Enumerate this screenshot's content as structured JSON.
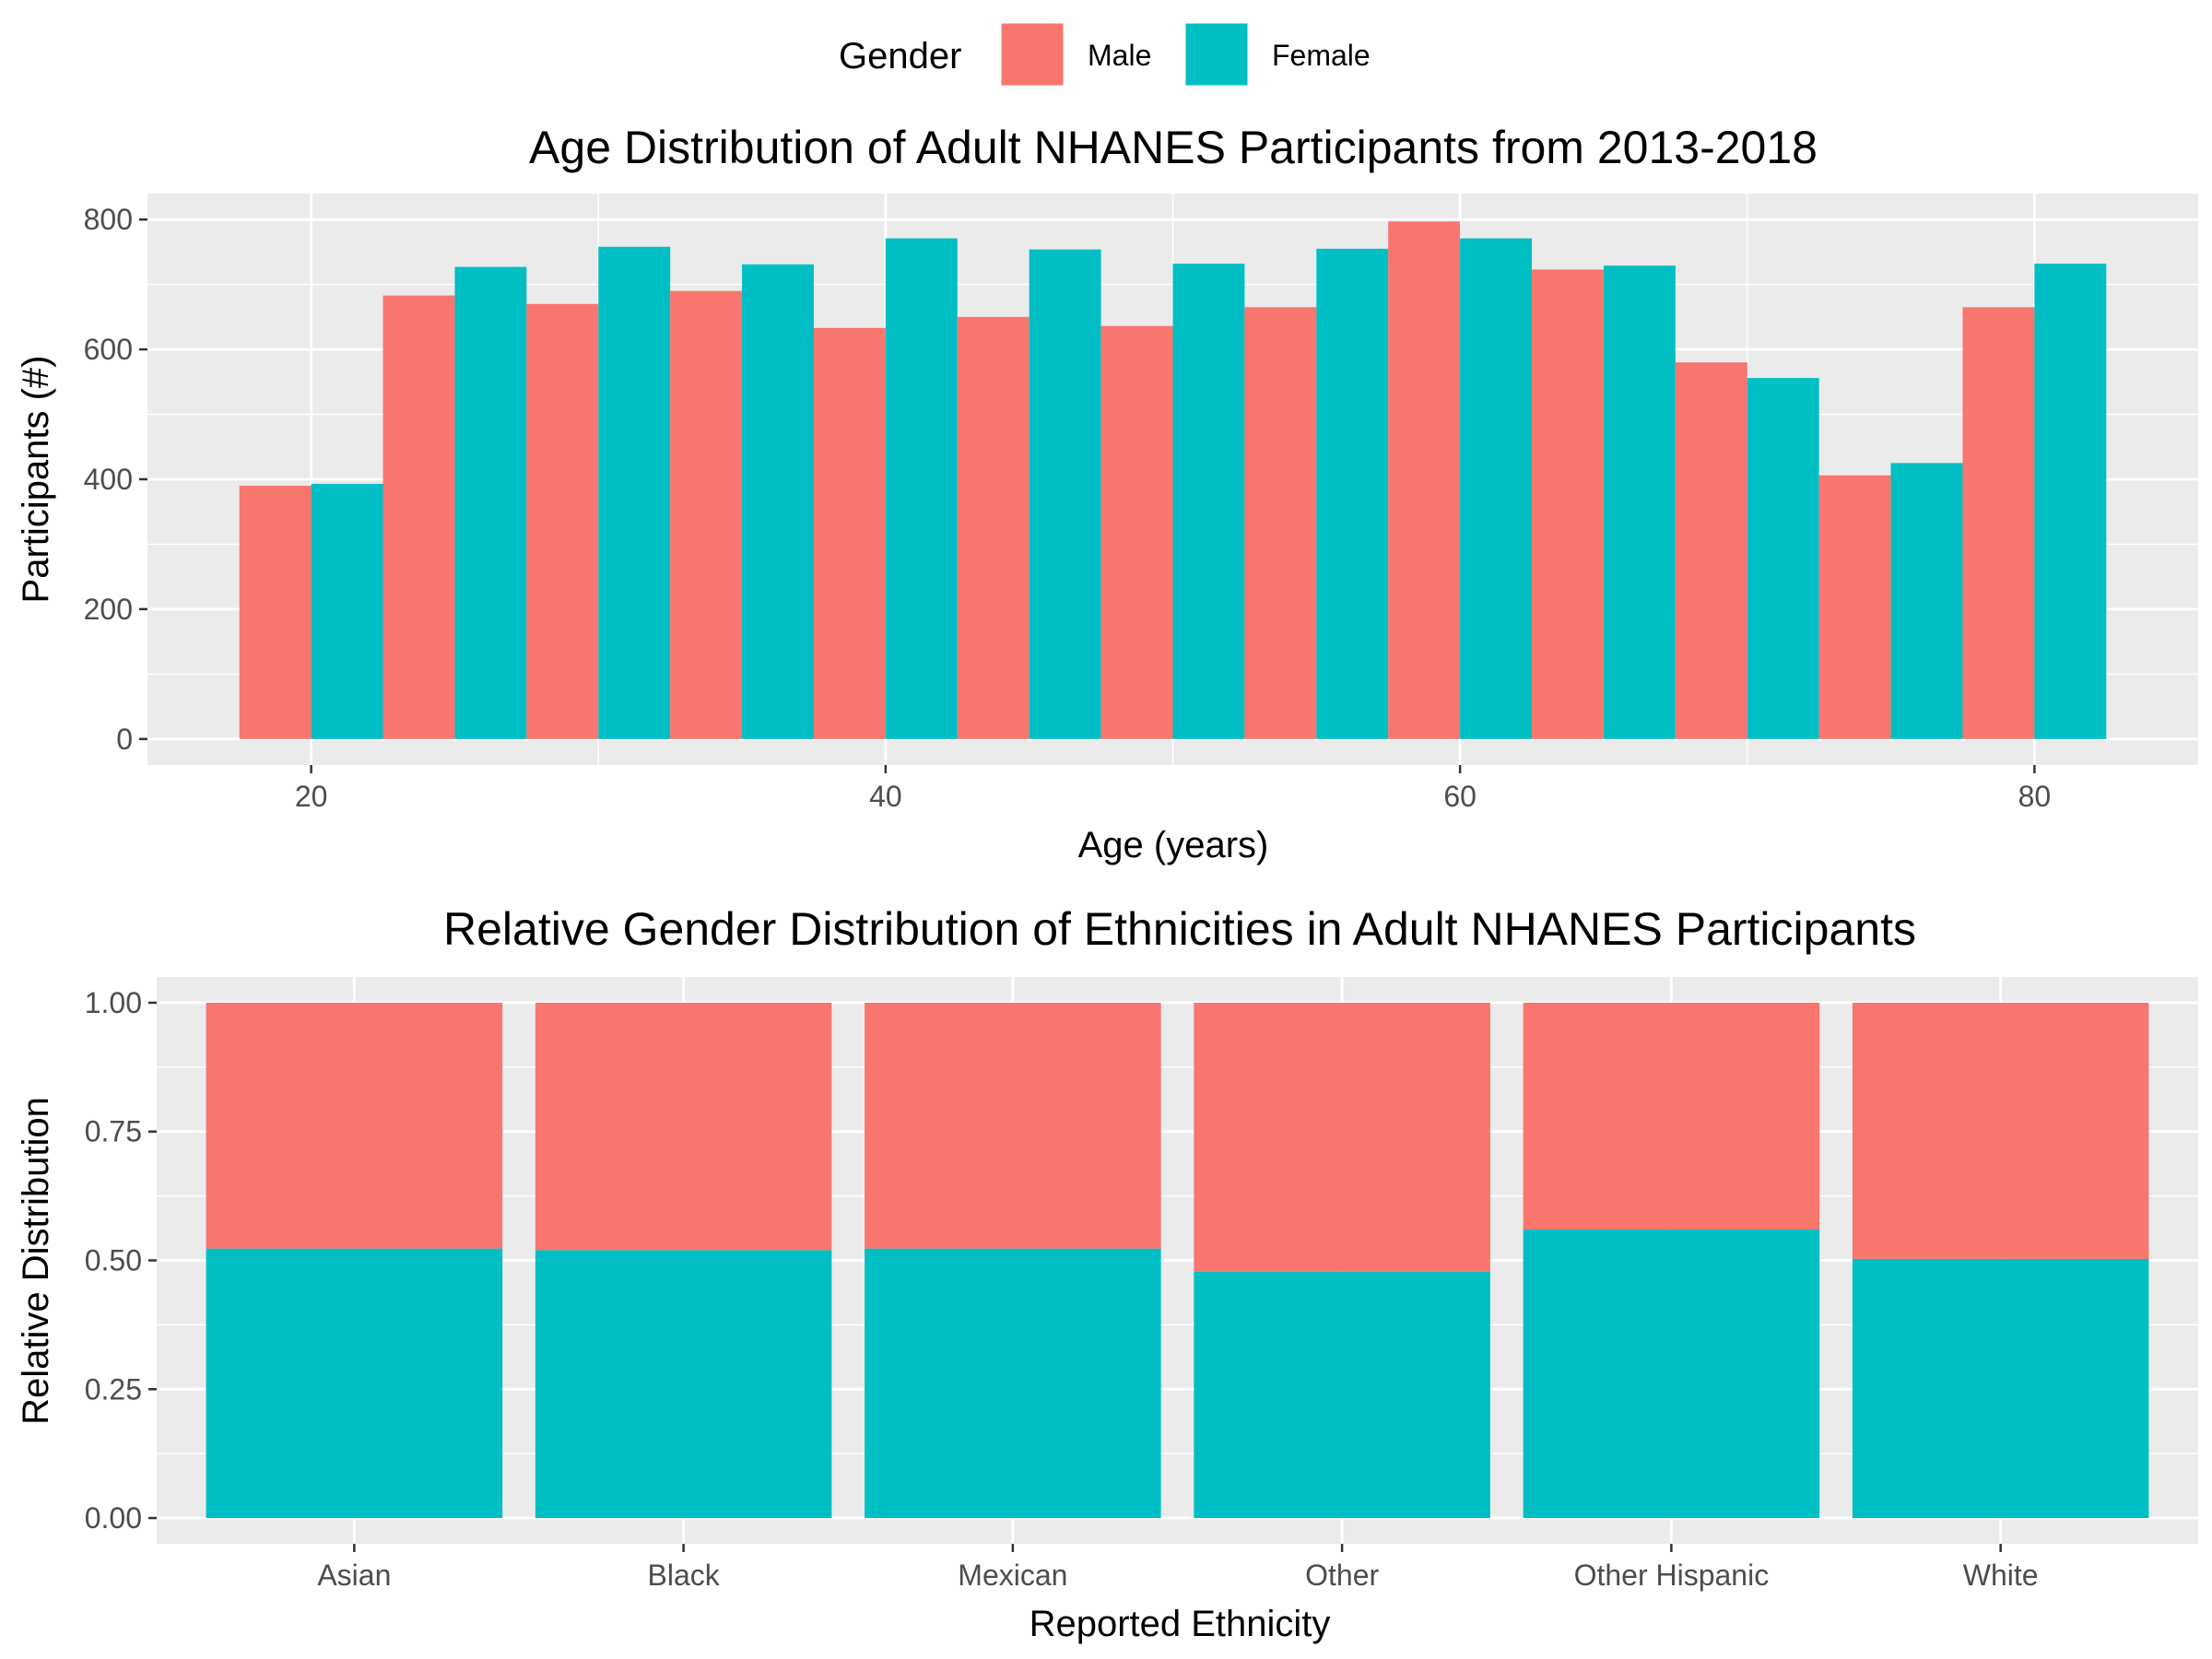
{
  "legend": {
    "title": "Gender",
    "position": "top",
    "entries": [
      {
        "label": "Male",
        "color": "#F8766D"
      },
      {
        "label": "Female",
        "color": "#00BFC4"
      }
    ]
  },
  "chart_data": [
    {
      "type": "bar",
      "title": "Age Distribution of Adult NHANES Participants from 2013-2018",
      "xlabel": "Age (years)",
      "ylabel": "Participants (#)",
      "xlim": [
        14.3,
        85.7
      ],
      "ylim": [
        -40,
        840
      ],
      "xticks": [
        20,
        40,
        60,
        80
      ],
      "yticks": [
        0,
        200,
        400,
        600,
        800
      ],
      "bin_width": 5,
      "bar_layout": "dodged",
      "grid": true,
      "bin_centers": [
        20,
        25,
        30,
        35,
        40,
        45,
        50,
        55,
        60,
        65,
        70,
        75,
        80
      ],
      "series": [
        {
          "name": "Male",
          "color": "#F8766D",
          "values": [
            390,
            683,
            670,
            690,
            633,
            650,
            636,
            665,
            797,
            723,
            580,
            406,
            665
          ]
        },
        {
          "name": "Female",
          "color": "#00BFC4",
          "values": [
            393,
            727,
            758,
            731,
            771,
            754,
            732,
            755,
            771,
            729,
            556,
            425,
            732
          ]
        }
      ]
    },
    {
      "type": "bar",
      "title": "Relative Gender Distribution of Ethnicities in Adult NHANES Participants",
      "xlabel": "Reported Ethnicity",
      "ylabel": "Relative Distribution",
      "ylim": [
        -0.05,
        1.05
      ],
      "yticks": [
        "0.00",
        "0.25",
        "0.50",
        "0.75",
        "1.00"
      ],
      "bar_layout": "stacked-proportion",
      "grid": true,
      "categories": [
        "Asian",
        "Black",
        "Mexican",
        "Other",
        "Other Hispanic",
        "White"
      ],
      "series": [
        {
          "name": "Female",
          "color": "#00BFC4",
          "values": [
            0.523,
            0.52,
            0.523,
            0.478,
            0.56,
            0.503
          ]
        },
        {
          "name": "Male",
          "color": "#F8766D",
          "values": [
            0.477,
            0.48,
            0.477,
            0.522,
            0.44,
            0.497
          ]
        }
      ]
    }
  ]
}
